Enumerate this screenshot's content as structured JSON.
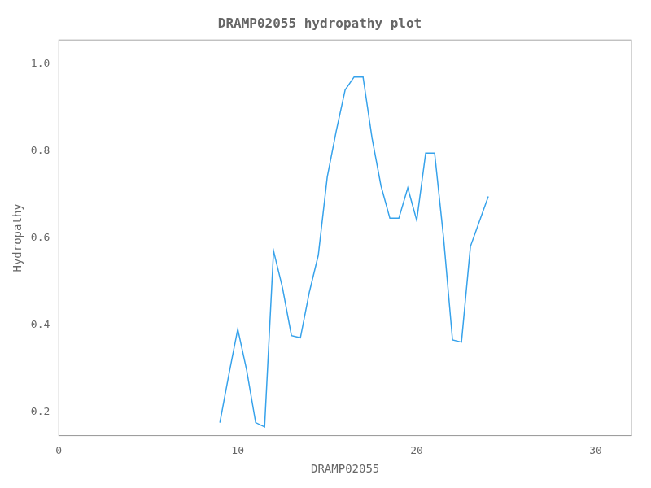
{
  "chart_data": {
    "type": "line",
    "title": "DRAMP02055 hydropathy plot",
    "xlabel": "DRAMP02055",
    "ylabel": "Hydropathy",
    "x": [
      9,
      9.5,
      10,
      10.5,
      11,
      11.5,
      12,
      12.5,
      13,
      13.5,
      14,
      14.5,
      15,
      15.5,
      16,
      16.5,
      17,
      17.5,
      18,
      18.5,
      19,
      19.5,
      20,
      20.5,
      21,
      21.5,
      22,
      22.5,
      23,
      24
    ],
    "values": [
      0.175,
      0.285,
      0.39,
      0.295,
      0.175,
      0.165,
      0.57,
      0.485,
      0.375,
      0.37,
      0.475,
      0.56,
      0.74,
      0.845,
      0.94,
      0.97,
      0.97,
      0.83,
      0.72,
      0.645,
      0.645,
      0.715,
      0.64,
      0.795,
      0.795,
      0.6,
      0.365,
      0.36,
      0.58,
      0.695
    ],
    "xlim": [
      0,
      32
    ],
    "ylim": [
      0.145,
      1.055
    ],
    "xticks": [
      0,
      10,
      20,
      30
    ],
    "yticks": [
      0.2,
      0.4,
      0.6,
      0.8,
      {
        "value": 1.0,
        "label": "1.0"
      }
    ],
    "grid": false
  }
}
